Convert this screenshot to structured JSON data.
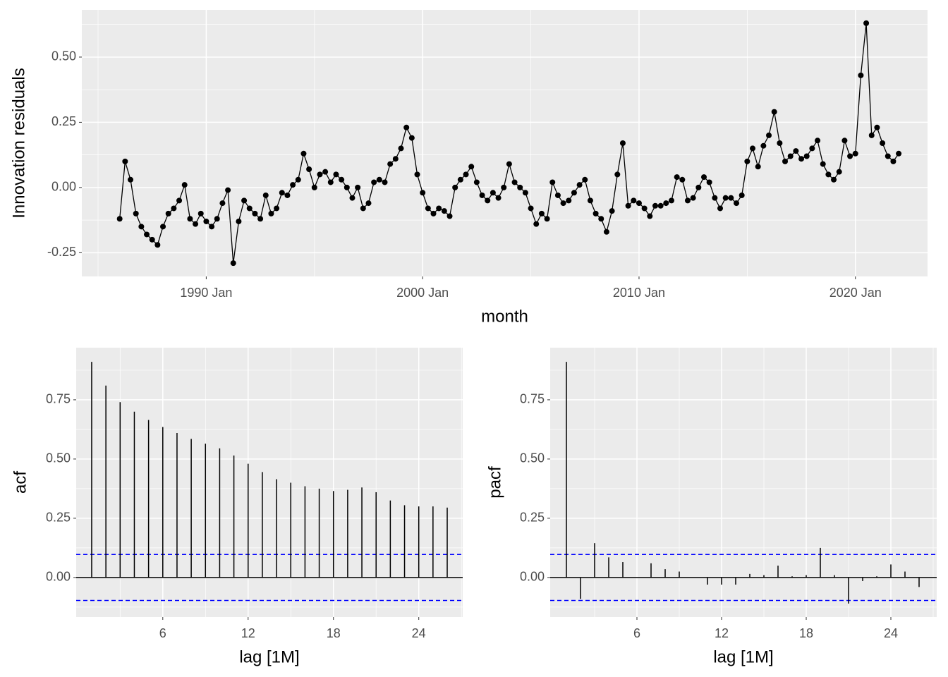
{
  "chart_data": [
    {
      "type": "line",
      "xlabel": "month",
      "ylabel": "Innovation residuals",
      "color": "#000000",
      "grid": true,
      "x": [
        "1986 Jan",
        "1986 Apr",
        "1986 Jul",
        "1986 Oct",
        "1987 Jan",
        "1987 Apr",
        "1987 Jul",
        "1987 Oct",
        "1988 Jan",
        "1988 Apr",
        "1988 Jul",
        "1988 Oct",
        "1989 Jan",
        "1989 Apr",
        "1989 Jul",
        "1989 Oct",
        "1990 Jan",
        "1990 Apr",
        "1990 Jul",
        "1990 Oct",
        "1991 Jan",
        "1991 Apr",
        "1991 Jul",
        "1991 Oct",
        "1992 Jan",
        "1992 Apr",
        "1992 Jul",
        "1992 Oct",
        "1993 Jan",
        "1993 Apr",
        "1993 Jul",
        "1993 Oct",
        "1994 Jan",
        "1994 Apr",
        "1994 Jul",
        "1994 Oct",
        "1995 Jan",
        "1995 Apr",
        "1995 Jul",
        "1995 Oct",
        "1996 Jan",
        "1996 Apr",
        "1996 Jul",
        "1996 Oct",
        "1997 Jan",
        "1997 Apr",
        "1997 Jul",
        "1997 Oct",
        "1998 Jan",
        "1998 Apr",
        "1998 Jul",
        "1998 Oct",
        "1999 Jan",
        "1999 Apr",
        "1999 Jul",
        "1999 Oct",
        "2000 Jan",
        "2000 Apr",
        "2000 Jul",
        "2000 Oct",
        "2001 Jan",
        "2001 Apr",
        "2001 Jul",
        "2001 Oct",
        "2002 Jan",
        "2002 Apr",
        "2002 Jul",
        "2002 Oct",
        "2003 Jan",
        "2003 Apr",
        "2003 Jul",
        "2003 Oct",
        "2004 Jan",
        "2004 Apr",
        "2004 Jul",
        "2004 Oct",
        "2005 Jan",
        "2005 Apr",
        "2005 Jul",
        "2005 Oct",
        "2006 Jan",
        "2006 Apr",
        "2006 Jul",
        "2006 Oct",
        "2007 Jan",
        "2007 Apr",
        "2007 Jul",
        "2007 Oct",
        "2008 Jan",
        "2008 Apr",
        "2008 Jul",
        "2008 Oct",
        "2009 Jan",
        "2009 Apr",
        "2009 Jul",
        "2009 Oct",
        "2010 Jan",
        "2010 Apr",
        "2010 Jul",
        "2010 Oct",
        "2011 Jan",
        "2011 Apr",
        "2011 Jul",
        "2011 Oct",
        "2012 Jan",
        "2012 Apr",
        "2012 Jul",
        "2012 Oct",
        "2013 Jan",
        "2013 Apr",
        "2013 Jul",
        "2013 Oct",
        "2014 Jan",
        "2014 Apr",
        "2014 Jul",
        "2014 Oct",
        "2015 Jan",
        "2015 Apr",
        "2015 Jul",
        "2015 Oct",
        "2016 Jan",
        "2016 Apr",
        "2016 Jul",
        "2016 Oct",
        "2017 Jan",
        "2017 Apr",
        "2017 Jul",
        "2017 Oct",
        "2018 Jan",
        "2018 Apr",
        "2018 Jul",
        "2018 Oct",
        "2019 Jan",
        "2019 Apr",
        "2019 Jul",
        "2019 Oct",
        "2020 Jan",
        "2020 Apr",
        "2020 Jul",
        "2020 Oct",
        "2021 Jan",
        "2021 Apr",
        "2021 Jul",
        "2021 Oct",
        "2022 Jan"
      ],
      "values": [
        -0.12,
        0.1,
        0.03,
        -0.1,
        -0.15,
        -0.18,
        -0.2,
        -0.22,
        -0.15,
        -0.1,
        -0.08,
        -0.05,
        0.01,
        -0.12,
        -0.14,
        -0.1,
        -0.13,
        -0.15,
        -0.12,
        -0.06,
        -0.01,
        -0.29,
        -0.13,
        -0.05,
        -0.08,
        -0.1,
        -0.12,
        -0.03,
        -0.1,
        -0.08,
        -0.02,
        -0.03,
        0.01,
        0.03,
        0.13,
        0.07,
        0.0,
        0.05,
        0.06,
        0.02,
        0.05,
        0.03,
        0.0,
        -0.04,
        0.0,
        -0.08,
        -0.06,
        0.02,
        0.03,
        0.02,
        0.09,
        0.11,
        0.15,
        0.23,
        0.19,
        0.05,
        -0.02,
        -0.08,
        -0.1,
        -0.08,
        -0.09,
        -0.11,
        0.0,
        0.03,
        0.05,
        0.08,
        0.02,
        -0.03,
        -0.05,
        -0.02,
        -0.04,
        0.0,
        0.09,
        0.02,
        0.0,
        -0.02,
        -0.08,
        -0.14,
        -0.1,
        -0.12,
        0.02,
        -0.03,
        -0.06,
        -0.05,
        -0.02,
        0.01,
        0.03,
        -0.05,
        -0.1,
        -0.12,
        -0.17,
        -0.09,
        0.05,
        0.17,
        -0.07,
        -0.05,
        -0.06,
        -0.08,
        -0.11,
        -0.07,
        -0.07,
        -0.06,
        -0.05,
        0.04,
        0.03,
        -0.05,
        -0.04,
        0.0,
        0.04,
        0.02,
        -0.04,
        -0.08,
        -0.04,
        -0.04,
        -0.06,
        -0.03,
        0.1,
        0.15,
        0.08,
        0.16,
        0.2,
        0.29,
        0.17,
        0.1,
        0.12,
        0.14,
        0.11,
        0.12,
        0.15,
        0.18,
        0.09,
        0.05,
        0.03,
        0.06,
        0.18,
        0.12,
        0.13,
        0.43,
        0.63,
        0.2,
        0.23,
        0.17,
        0.12,
        0.1,
        0.13
      ],
      "xlim": [
        "1984 Apr",
        "2023 May"
      ],
      "xticks": [
        "1990 Jan",
        "2000 Jan",
        "2010 Jan",
        "2020 Jan"
      ],
      "ylim": [
        -0.341,
        0.681
      ],
      "yticks": [
        {
          "value": -0.25,
          "label": "-0.25"
        },
        {
          "value": 0,
          "label": "0.00"
        },
        {
          "value": 0.25,
          "label": "0.25"
        },
        {
          "value": 0.5,
          "label": "0.50"
        }
      ]
    },
    {
      "type": "bar",
      "xlabel": "lag [1M]",
      "ylabel": "acf",
      "color": "#000000",
      "ci_color": "#0000ff",
      "grid": true,
      "ci": 0.097,
      "x": [
        1,
        2,
        3,
        4,
        5,
        6,
        7,
        8,
        9,
        10,
        11,
        12,
        13,
        14,
        15,
        16,
        17,
        18,
        19,
        20,
        21,
        22,
        23,
        24,
        25,
        26
      ],
      "values": [
        0.91,
        0.81,
        0.74,
        0.7,
        0.665,
        0.635,
        0.61,
        0.585,
        0.565,
        0.545,
        0.515,
        0.48,
        0.445,
        0.415,
        0.4,
        0.385,
        0.375,
        0.365,
        0.37,
        0.38,
        0.36,
        0.325,
        0.305,
        0.3,
        0.3,
        0.295
      ],
      "xlim": [
        -0.09,
        27.09
      ],
      "xticks": [
        6,
        12,
        18,
        24
      ],
      "ylim": [
        -0.167,
        0.97
      ],
      "yticks": [
        {
          "value": 0,
          "label": "0.00"
        },
        {
          "value": 0.25,
          "label": "0.25"
        },
        {
          "value": 0.5,
          "label": "0.50"
        },
        {
          "value": 0.75,
          "label": "0.75"
        }
      ]
    },
    {
      "type": "bar",
      "xlabel": "lag [1M]",
      "ylabel": "pacf",
      "color": "#000000",
      "ci_color": "#0000ff",
      "grid": true,
      "ci": 0.097,
      "x": [
        1,
        2,
        3,
        4,
        5,
        6,
        7,
        8,
        9,
        10,
        11,
        12,
        13,
        14,
        15,
        16,
        17,
        18,
        19,
        20,
        21,
        22,
        23,
        24,
        25,
        26
      ],
      "values": [
        0.91,
        -0.09,
        0.145,
        0.085,
        0.065,
        0.0,
        0.06,
        0.035,
        0.025,
        0.0,
        -0.03,
        -0.03,
        -0.03,
        0.015,
        0.01,
        0.05,
        0.005,
        0.01,
        0.125,
        0.01,
        -0.11,
        -0.015,
        0.005,
        0.055,
        0.025,
        -0.04
      ],
      "xlim": [
        -0.15,
        27.25
      ],
      "xticks": [
        6,
        12,
        18,
        24
      ],
      "ylim": [
        -0.167,
        0.97
      ],
      "yticks": [
        {
          "value": 0,
          "label": "0.00"
        },
        {
          "value": 0.25,
          "label": "0.25"
        },
        {
          "value": 0.5,
          "label": "0.50"
        },
        {
          "value": 0.75,
          "label": "0.75"
        }
      ]
    }
  ]
}
